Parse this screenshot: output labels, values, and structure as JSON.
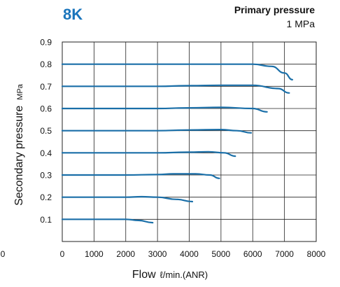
{
  "badge": "8K",
  "primary_pressure": {
    "title": "Primary pressure",
    "value": "1 MPa"
  },
  "colors": {
    "accent": "#1a75bc",
    "curve": "#1a6fa8",
    "grid": "#222222"
  },
  "chart_data": {
    "type": "line",
    "title": "",
    "xlabel": "Flow",
    "xunit": "ℓ/min.(ANR)",
    "ylabel": "Secondary pressure",
    "yunit": "MPa",
    "xlim": [
      0,
      8000
    ],
    "ylim": [
      0,
      0.9
    ],
    "xticks": [
      0,
      1000,
      2000,
      3000,
      4000,
      5000,
      6000,
      7000,
      8000
    ],
    "yticks": [
      0.1,
      0.2,
      0.3,
      0.4,
      0.5,
      0.6,
      0.7,
      0.8,
      0.9
    ],
    "extra_ytick_label": "0",
    "grid": true,
    "series": [
      {
        "x": [
          0,
          1000,
          2000,
          2400,
          2850
        ],
        "y": [
          0.1,
          0.1,
          0.1,
          0.095,
          0.085
        ]
      },
      {
        "x": [
          0,
          1000,
          2000,
          2500,
          3000,
          3600,
          4100
        ],
        "y": [
          0.2,
          0.2,
          0.2,
          0.202,
          0.2,
          0.19,
          0.18
        ]
      },
      {
        "x": [
          0,
          1000,
          2000,
          3000,
          3500,
          4200,
          4650,
          4950
        ],
        "y": [
          0.3,
          0.3,
          0.3,
          0.302,
          0.305,
          0.305,
          0.3,
          0.285
        ]
      },
      {
        "x": [
          0,
          1000,
          2000,
          3000,
          4000,
          4600,
          5100,
          5450
        ],
        "y": [
          0.4,
          0.4,
          0.4,
          0.4,
          0.403,
          0.405,
          0.4,
          0.385
        ]
      },
      {
        "x": [
          0,
          1000,
          2000,
          3000,
          4000,
          5000,
          5500,
          5950
        ],
        "y": [
          0.5,
          0.5,
          0.5,
          0.5,
          0.503,
          0.505,
          0.5,
          0.49
        ]
      },
      {
        "x": [
          0,
          1000,
          2000,
          3000,
          4000,
          5000,
          6000,
          6450
        ],
        "y": [
          0.6,
          0.6,
          0.6,
          0.6,
          0.603,
          0.605,
          0.6,
          0.585
        ]
      },
      {
        "x": [
          0,
          1000,
          2000,
          3000,
          4000,
          5000,
          6000,
          6800,
          7150
        ],
        "y": [
          0.7,
          0.7,
          0.7,
          0.7,
          0.703,
          0.705,
          0.705,
          0.69,
          0.67
        ]
      },
      {
        "x": [
          0,
          1000,
          2000,
          3000,
          4000,
          5000,
          6000,
          6600,
          7000,
          7250
        ],
        "y": [
          0.8,
          0.8,
          0.8,
          0.8,
          0.8,
          0.8,
          0.8,
          0.79,
          0.76,
          0.73
        ]
      }
    ]
  }
}
